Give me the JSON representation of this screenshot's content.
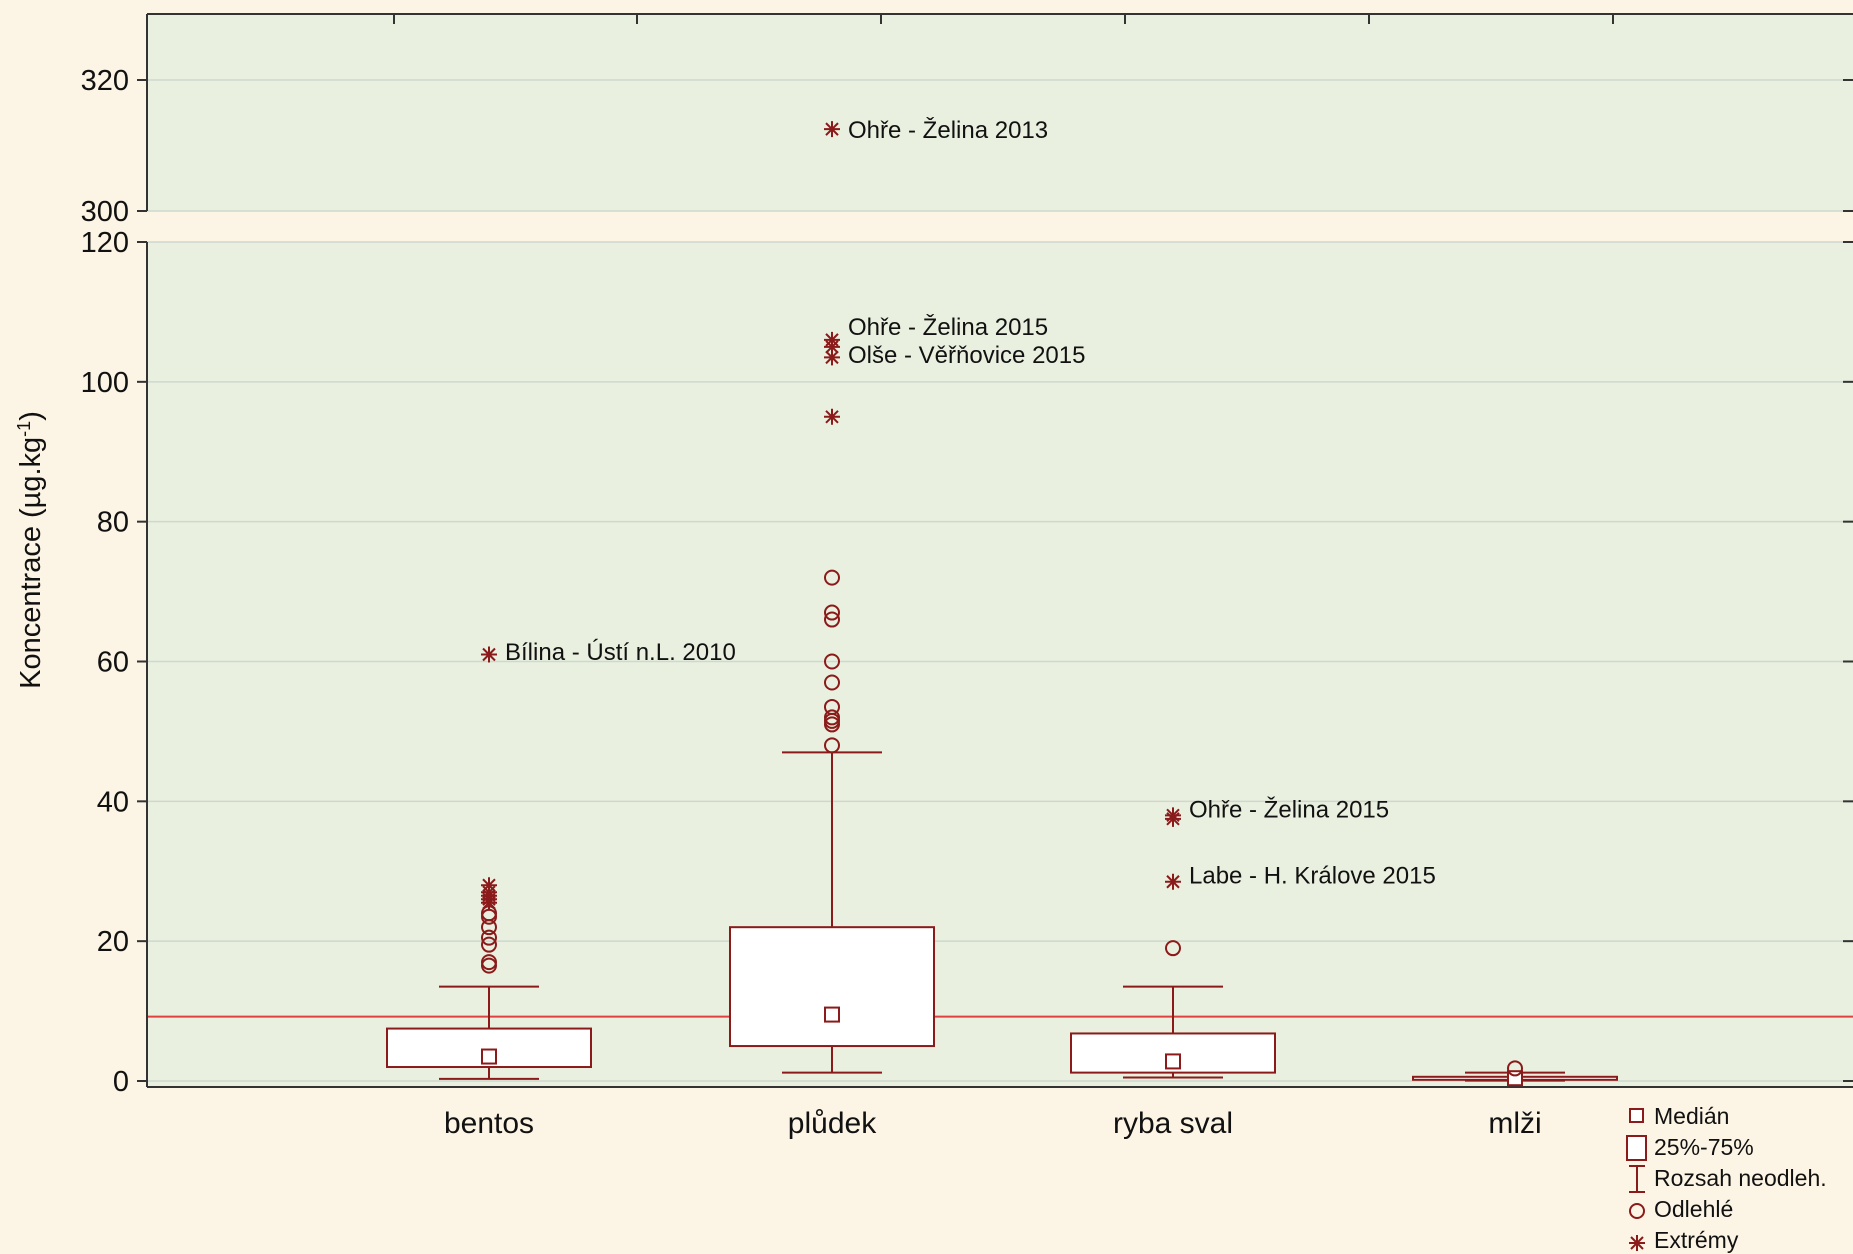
{
  "colors": {
    "page_bg": "#fcf4e4",
    "plot_bg": "#e9f0df",
    "series": "#8b1a1a",
    "reference_line": "#e04040",
    "grid": "#cfd8cf",
    "axis": "#333333"
  },
  "chart_data": {
    "type": "box",
    "ylabel_main": "Koncentrace (µg.kg",
    "ylabel_sup": "-1",
    "ylabel_tail": ")",
    "axis_break": {
      "lower_range": [
        0,
        120
      ],
      "upper_range": [
        300,
        325
      ]
    },
    "yticks": [
      0,
      20,
      40,
      60,
      80,
      100,
      120,
      300,
      320
    ],
    "reference_line_value": 9.2,
    "grid": true,
    "legend_position": "bottom-right",
    "categories": [
      "bentos",
      "plůdek",
      "ryba sval",
      "mlži"
    ],
    "boxes": [
      {
        "category": "bentos",
        "median": 3.5,
        "q1": 2,
        "q3": 7.5,
        "whisker_low": 0.3,
        "whisker_high": 13.5,
        "outliers": [
          16.5,
          17,
          19.5,
          20.5,
          22,
          23.5,
          24
        ],
        "extremes": [
          25.5,
          26,
          26.5,
          27,
          28,
          61
        ]
      },
      {
        "category": "plůdek",
        "median": 9.5,
        "q1": 5,
        "q3": 22,
        "whisker_low": 1.2,
        "whisker_high": 47,
        "outliers": [
          48,
          51,
          51.5,
          52,
          53.5,
          57,
          60,
          66,
          67,
          72
        ],
        "extremes": [
          95,
          103.5,
          105,
          106,
          312.5
        ]
      },
      {
        "category": "ryba sval",
        "median": 2.8,
        "q1": 1.2,
        "q3": 6.8,
        "whisker_low": 0.5,
        "whisker_high": 13.5,
        "outliers": [
          19
        ],
        "extremes": [
          28.5,
          37.5,
          38
        ]
      },
      {
        "category": "mlži",
        "median": 0.4,
        "q1": 0.2,
        "q3": 0.6,
        "whisker_low": 0.05,
        "whisker_high": 1.2,
        "outliers": [
          1.8
        ],
        "extremes": []
      }
    ],
    "annotations": [
      {
        "category": "plůdek",
        "y": 312.5,
        "label": "Ohře - Želina 2013"
      },
      {
        "category": "plůdek",
        "y": 108,
        "label": "Ohře - Želina 2015"
      },
      {
        "category": "plůdek",
        "y": 104,
        "label": "Olše - Věřňovice 2015"
      },
      {
        "category": "bentos",
        "y": 61.5,
        "label": "Bílina - Ústí n.L. 2010"
      },
      {
        "category": "ryba sval",
        "y": 39,
        "label": "Ohře - Želina 2015"
      },
      {
        "category": "ryba sval",
        "y": 29.5,
        "label": "Labe - H. Králove 2015"
      }
    ],
    "legend": [
      {
        "symbol": "median",
        "label": "Medián"
      },
      {
        "symbol": "box",
        "label": "25%-75%"
      },
      {
        "symbol": "whisker",
        "label": "Rozsah neodleh."
      },
      {
        "symbol": "outlier",
        "label": "Odlehlé"
      },
      {
        "symbol": "extreme",
        "label": "Extrémy"
      }
    ]
  }
}
